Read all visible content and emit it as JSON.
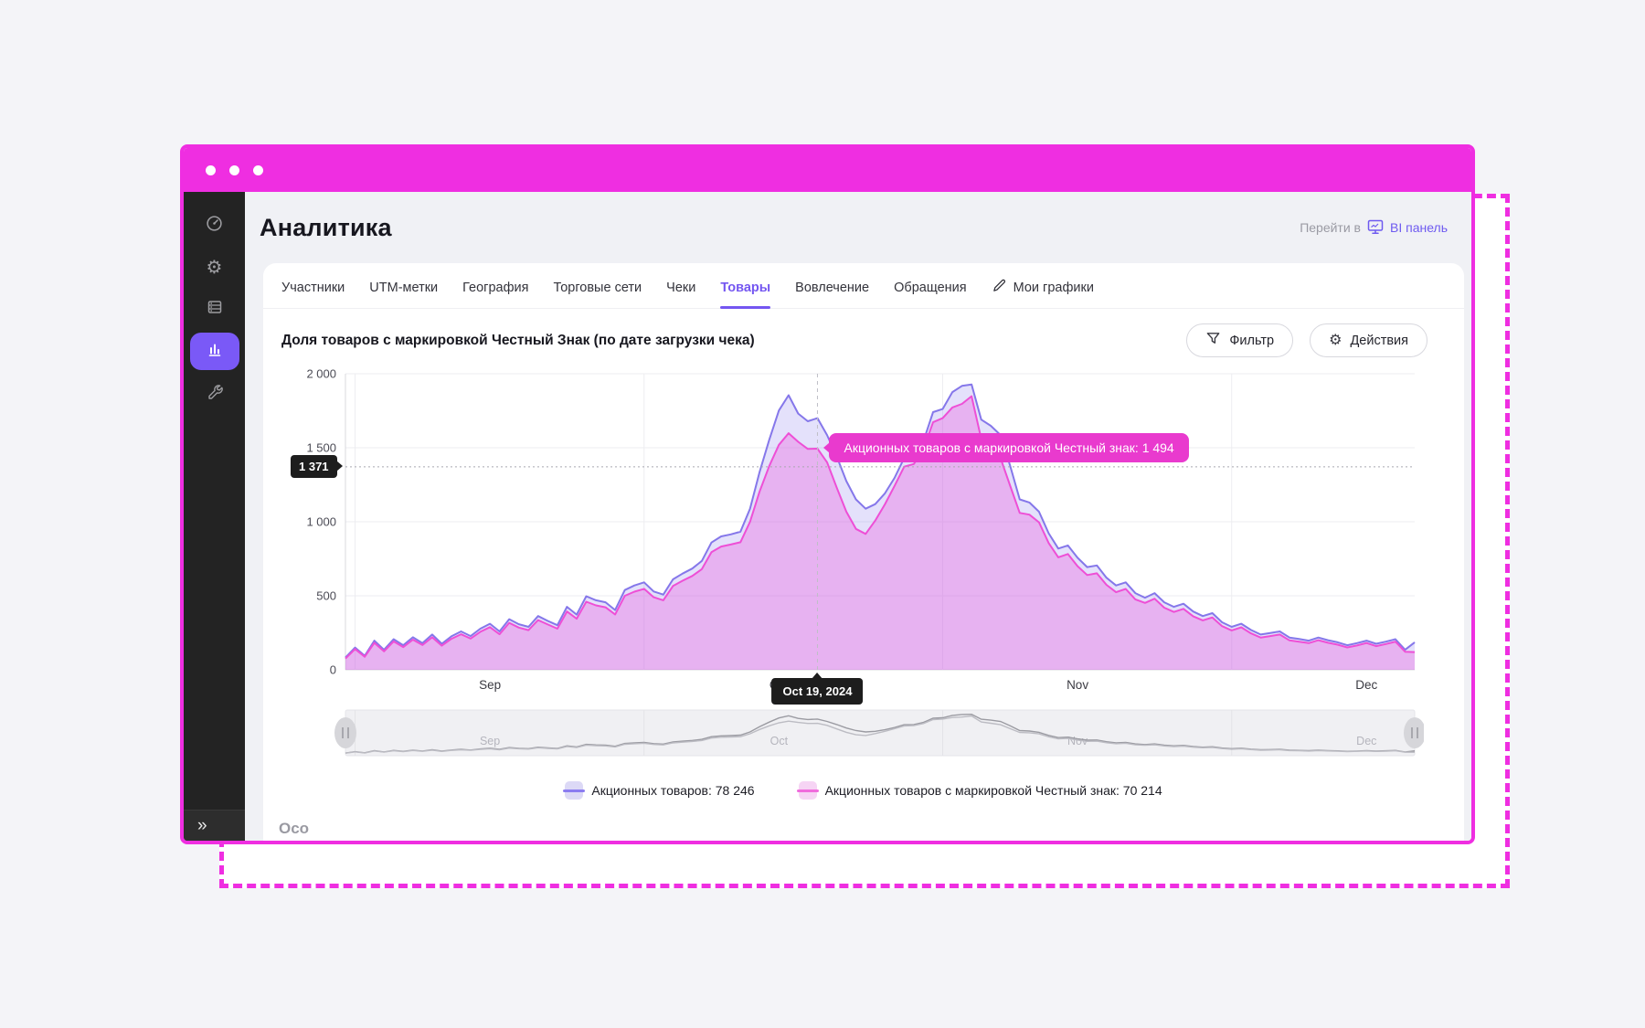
{
  "colors": {
    "accent_magenta": "#EF2EE1",
    "accent_purple": "#7456F1",
    "sidebar_bg": "#232323",
    "tooltip_bg": "#E93ACE",
    "badge_bg": "#1D1D1D",
    "series_total_line": "#8577EA",
    "series_total_fill": "rgba(131,118,236,0.22)",
    "series_marked_line": "#EE4FD6",
    "series_marked_fill": "rgba(236,88,224,0.34)"
  },
  "window": {
    "dot_count": 3
  },
  "sidebar": {
    "items": [
      {
        "icon": "gauge-icon",
        "active": false
      },
      {
        "icon": "gear-icon",
        "active": false
      },
      {
        "icon": "table-list-icon",
        "active": false
      },
      {
        "icon": "bar-chart-icon",
        "active": true
      },
      {
        "icon": "wrench-icon",
        "active": false
      }
    ],
    "collapse_icon": "chevrons-right-icon",
    "collapse_glyph": "»"
  },
  "header": {
    "title": "Аналитика",
    "goto_label": "Перейти в",
    "bi_link": "BI панель",
    "bi_icon": "monitor-icon"
  },
  "tabs": {
    "items": [
      {
        "label": "Участники"
      },
      {
        "label": "UTM-метки"
      },
      {
        "label": "География"
      },
      {
        "label": "Торговые сети"
      },
      {
        "label": "Чеки"
      },
      {
        "label": "Товары"
      },
      {
        "label": "Вовлечение"
      },
      {
        "label": "Обращения"
      }
    ],
    "active_index": 5,
    "my_charts_label": "Мои графики",
    "my_charts_icon": "pen-icon"
  },
  "toolbar": {
    "filter_label": "Фильтр",
    "filter_icon": "funnel-icon",
    "actions_label": "Действия",
    "actions_icon": "gear-icon",
    "actions_glyph": "⚙"
  },
  "chart_data": {
    "type": "area",
    "title": "Доля товаров с маркировкой Честный Знак (по дате загрузки чека)",
    "ylim": [
      0,
      2000
    ],
    "yticks": [
      0,
      500,
      1000,
      1500,
      2000
    ],
    "ytick_labels": [
      "0",
      "500",
      "1 000",
      "1 500",
      "2 000"
    ],
    "x_range": [
      "2024-08-31",
      "2024-12-20"
    ],
    "grid": true,
    "legend_position": "bottom",
    "months": [
      {
        "label": "Sep",
        "start": "2024-09-01",
        "mid": "2024-09-15"
      },
      {
        "label": "Oct",
        "start": "2024-10-01",
        "mid": "2024-10-15"
      },
      {
        "label": "Nov",
        "start": "2024-11-01",
        "mid": "2024-11-15"
      },
      {
        "label": "Dec",
        "start": "2024-12-01",
        "mid": "2024-12-15"
      }
    ],
    "series": [
      {
        "name": "Акционных товаров",
        "key": "total",
        "line": "#8577EA",
        "fill": "rgba(131,118,236,0.22)"
      },
      {
        "name": "Акционных товаров с маркировкой Честный знак",
        "key": "marked",
        "line": "#EE4FD6",
        "fill": "rgba(236,88,224,0.34)"
      }
    ],
    "points": [
      [
        "2024-08-31",
        83,
        76
      ],
      [
        "2024-09-01",
        150,
        140
      ],
      [
        "2024-09-02",
        95,
        88
      ],
      [
        "2024-09-03",
        197,
        182
      ],
      [
        "2024-09-04",
        135,
        125
      ],
      [
        "2024-09-05",
        207,
        192
      ],
      [
        "2024-09-06",
        166,
        153
      ],
      [
        "2024-09-07",
        220,
        204
      ],
      [
        "2024-09-08",
        180,
        167
      ],
      [
        "2024-09-09",
        238,
        220
      ],
      [
        "2024-09-10",
        176,
        163
      ],
      [
        "2024-09-11",
        226,
        209
      ],
      [
        "2024-09-12",
        259,
        240
      ],
      [
        "2024-09-13",
        228,
        211
      ],
      [
        "2024-09-14",
        278,
        257
      ],
      [
        "2024-09-15",
        311,
        288
      ],
      [
        "2024-09-16",
        259,
        240
      ],
      [
        "2024-09-17",
        342,
        317
      ],
      [
        "2024-09-18",
        308,
        285
      ],
      [
        "2024-09-19",
        290,
        268
      ],
      [
        "2024-09-20",
        363,
        336
      ],
      [
        "2024-09-21",
        330,
        306
      ],
      [
        "2024-09-22",
        301,
        278
      ],
      [
        "2024-09-23",
        425,
        394
      ],
      [
        "2024-09-24",
        373,
        345
      ],
      [
        "2024-09-25",
        497,
        460
      ],
      [
        "2024-09-26",
        470,
        435
      ],
      [
        "2024-09-27",
        456,
        422
      ],
      [
        "2024-09-28",
        404,
        374
      ],
      [
        "2024-09-29",
        539,
        500
      ],
      [
        "2024-09-30",
        570,
        528
      ],
      [
        "2024-10-01",
        591,
        547
      ],
      [
        "2024-10-02",
        529,
        490
      ],
      [
        "2024-10-03",
        508,
        470
      ],
      [
        "2024-10-04",
        611,
        566
      ],
      [
        "2024-10-05",
        650,
        602
      ],
      [
        "2024-10-06",
        684,
        634
      ],
      [
        "2024-10-07",
        736,
        680
      ],
      [
        "2024-10-08",
        860,
        795
      ],
      [
        "2024-10-09",
        901,
        833
      ],
      [
        "2024-10-10",
        915,
        846
      ],
      [
        "2024-10-11",
        933,
        862
      ],
      [
        "2024-10-12",
        1088,
        1000
      ],
      [
        "2024-10-13",
        1337,
        1205
      ],
      [
        "2024-10-14",
        1555,
        1378
      ],
      [
        "2024-10-15",
        1752,
        1520
      ],
      [
        "2024-10-16",
        1855,
        1598
      ],
      [
        "2024-10-17",
        1731,
        1540
      ],
      [
        "2024-10-18",
        1679,
        1492
      ],
      [
        "2024-10-19",
        1700,
        1494
      ],
      [
        "2024-10-20",
        1586,
        1402
      ],
      [
        "2024-10-21",
        1441,
        1230
      ],
      [
        "2024-10-22",
        1275,
        1068
      ],
      [
        "2024-10-23",
        1151,
        952
      ],
      [
        "2024-10-24",
        1088,
        918
      ],
      [
        "2024-10-25",
        1119,
        1008
      ],
      [
        "2024-10-26",
        1192,
        1118
      ],
      [
        "2024-10-27",
        1296,
        1242
      ],
      [
        "2024-10-28",
        1431,
        1372
      ],
      [
        "2024-10-29",
        1441,
        1390
      ],
      [
        "2024-10-30",
        1544,
        1488
      ],
      [
        "2024-10-31",
        1741,
        1672
      ],
      [
        "2024-11-01",
        1762,
        1700
      ],
      [
        "2024-11-02",
        1876,
        1772
      ],
      [
        "2024-11-03",
        1918,
        1796
      ],
      [
        "2024-11-04",
        1928,
        1848
      ],
      [
        "2024-11-05",
        1690,
        1560
      ],
      [
        "2024-11-06",
        1648,
        1500
      ],
      [
        "2024-11-07",
        1586,
        1430
      ],
      [
        "2024-11-08",
        1379,
        1244
      ],
      [
        "2024-11-09",
        1151,
        1060
      ],
      [
        "2024-11-10",
        1130,
        1048
      ],
      [
        "2024-11-11",
        1068,
        996
      ],
      [
        "2024-11-12",
        922,
        856
      ],
      [
        "2024-11-13",
        819,
        760
      ],
      [
        "2024-11-14",
        840,
        782
      ],
      [
        "2024-11-15",
        757,
        700
      ],
      [
        "2024-11-16",
        694,
        640
      ],
      [
        "2024-11-17",
        705,
        652
      ],
      [
        "2024-11-18",
        622,
        574
      ],
      [
        "2024-11-19",
        570,
        524
      ],
      [
        "2024-11-20",
        591,
        546
      ],
      [
        "2024-11-21",
        518,
        476
      ],
      [
        "2024-11-22",
        487,
        452
      ],
      [
        "2024-11-23",
        518,
        480
      ],
      [
        "2024-11-24",
        456,
        420
      ],
      [
        "2024-11-25",
        425,
        391
      ],
      [
        "2024-11-26",
        446,
        412
      ],
      [
        "2024-11-27",
        394,
        362
      ],
      [
        "2024-11-28",
        363,
        334
      ],
      [
        "2024-11-29",
        383,
        354
      ],
      [
        "2024-11-30",
        321,
        295
      ],
      [
        "2024-12-01",
        290,
        266
      ],
      [
        "2024-12-02",
        311,
        287
      ],
      [
        "2024-12-03",
        269,
        246
      ],
      [
        "2024-12-04",
        238,
        218
      ],
      [
        "2024-12-05",
        248,
        228
      ],
      [
        "2024-12-06",
        259,
        238
      ],
      [
        "2024-12-07",
        218,
        199
      ],
      [
        "2024-12-08",
        208,
        190
      ],
      [
        "2024-12-09",
        197,
        180
      ],
      [
        "2024-12-10",
        218,
        200
      ],
      [
        "2024-12-11",
        200,
        183
      ],
      [
        "2024-12-12",
        186,
        170
      ],
      [
        "2024-12-13",
        166,
        151
      ],
      [
        "2024-12-14",
        180,
        164
      ],
      [
        "2024-12-15",
        197,
        181
      ],
      [
        "2024-12-16",
        176,
        160
      ],
      [
        "2024-12-17",
        190,
        174
      ],
      [
        "2024-12-18",
        207,
        190
      ],
      [
        "2024-12-19",
        135,
        122
      ],
      [
        "2024-12-20",
        186,
        120
      ]
    ]
  },
  "crosshair": {
    "date": "2024-10-19",
    "date_label": "Oct 19, 2024",
    "y_value": 1371,
    "y_badge": "1 371",
    "tooltip_text": "Акционных товаров с маркировкой Честный знак: 1 494",
    "tooltip_value": 1494
  },
  "legend": {
    "items": [
      {
        "label": "Акционных товаров: 78 246",
        "swatch": "#DCD9F6",
        "line": "#8B7CF0"
      },
      {
        "label": "Акционных товаров с маркировкой Честный знак: 70 214",
        "swatch": "#F6D4F4",
        "line": "#F06CDC"
      }
    ]
  },
  "minimap": {
    "handle_icon": "drag-handle-icon"
  },
  "clipped_text": "Осо"
}
